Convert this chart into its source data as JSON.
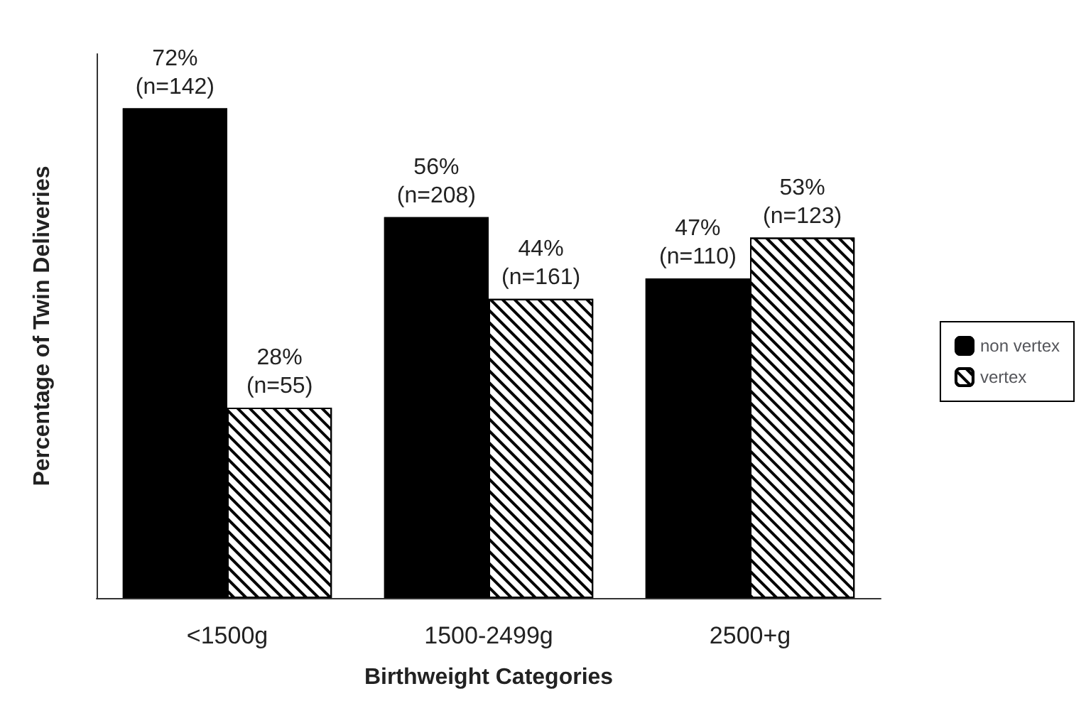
{
  "chart_data": {
    "type": "bar",
    "xlabel": "Birthweight Categories",
    "ylabel": "Percentage of Twin Deliveries",
    "categories": [
      "<1500g",
      "1500-2499g",
      "2500+g"
    ],
    "series": [
      {
        "name": "non vertex",
        "color": "#000000",
        "values": [
          72,
          56,
          47
        ],
        "value_labels": [
          "72%\n(n=142)",
          "56%\n(n=208)",
          "47%\n(n=110)"
        ]
      },
      {
        "name": "vertex",
        "color": "#ffffff",
        "values": [
          28,
          44,
          53
        ],
        "value_labels": [
          "28%\n(n=55)",
          "44%\n(n=161)",
          "53%\n(n=123)"
        ]
      }
    ],
    "ylim": [
      0,
      80
    ],
    "tick_labels": "x",
    "grid": false,
    "legend": "right"
  }
}
